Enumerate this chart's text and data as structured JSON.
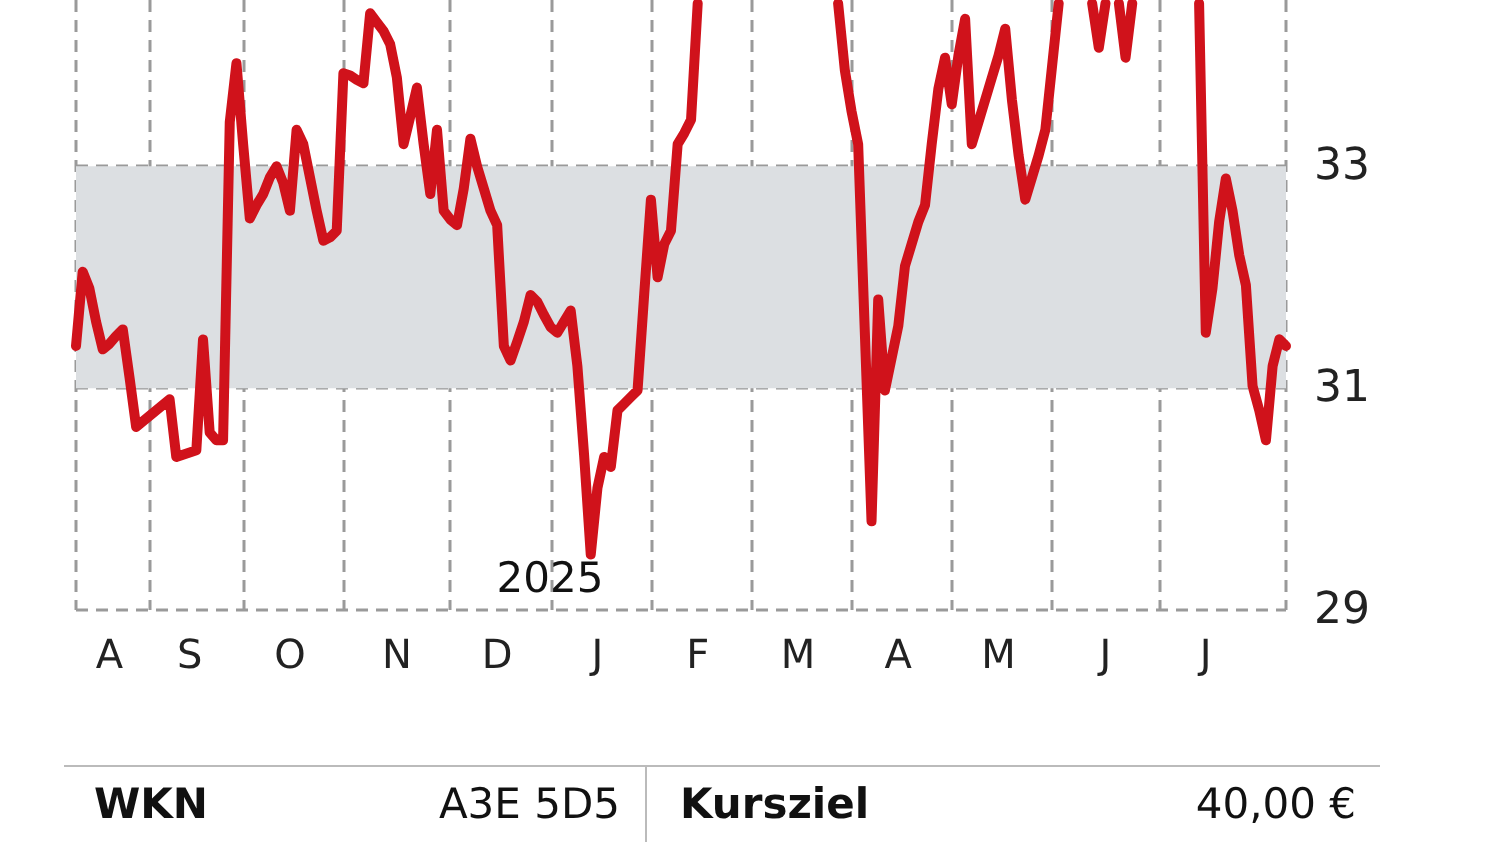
{
  "chart_data": {
    "type": "line",
    "annotations": [
      "2025",
      "WKN",
      "A3E 5D5",
      "Kursziel",
      "40,00 €"
    ],
    "categories": [
      null,
      null,
      null,
      null,
      null,
      "A",
      null,
      null,
      null,
      null,
      null,
      null,
      null,
      null,
      null,
      null,
      null,
      "S",
      null,
      null,
      null,
      null,
      null,
      null,
      null,
      null,
      null,
      null,
      null,
      null,
      null,
      null,
      "O",
      null,
      null,
      null,
      null,
      null,
      null,
      null,
      null,
      null,
      null,
      null,
      null,
      null,
      null,
      null,
      "N",
      null,
      null,
      null,
      null,
      null,
      null,
      null,
      null,
      null,
      null,
      null,
      null,
      null,
      null,
      "D",
      null,
      null,
      null,
      null,
      null,
      null,
      null,
      null,
      null,
      null,
      null,
      null,
      null,
      null,
      "J",
      null,
      null,
      null,
      null,
      null,
      null,
      null,
      null,
      null,
      null,
      null,
      null,
      null,
      null,
      "F",
      null,
      null,
      null,
      null,
      null,
      null,
      null,
      null,
      null,
      null,
      null,
      null,
      null,
      null,
      "M",
      null,
      null,
      null,
      null,
      null,
      null,
      null,
      null,
      null,
      null,
      null,
      null,
      null,
      null,
      "A",
      null,
      null,
      null,
      null,
      null,
      null,
      null,
      null,
      null,
      null,
      null,
      null,
      null,
      null,
      "M",
      null,
      null,
      null,
      null,
      null,
      null,
      null,
      null,
      null,
      null,
      null,
      null,
      null,
      null,
      null,
      "J",
      null,
      null,
      null,
      null,
      null,
      null,
      null,
      null,
      null,
      null,
      null,
      null,
      null,
      null,
      "J",
      null,
      null,
      null,
      null,
      null,
      null,
      null,
      null,
      null,
      null,
      null,
      null
    ],
    "series": [
      {
        "color": "#d0121b",
        "values": [
          31.38,
          32.05,
          31.9,
          31.6,
          31.35,
          31.4,
          31.47,
          31.53,
          31.1,
          30.65,
          30.7,
          30.75,
          30.8,
          30.85,
          30.9,
          30.38,
          30.4,
          30.42,
          30.44,
          31.44,
          30.6,
          30.53,
          30.53,
          33.4,
          33.93,
          33.2,
          32.53,
          32.65,
          32.75,
          32.9,
          33.0,
          32.85,
          32.6,
          33.33,
          33.2,
          32.9,
          32.6,
          32.33,
          32.36,
          32.42,
          33.84,
          33.82,
          33.78,
          33.75,
          34.38,
          34.3,
          34.22,
          34.1,
          33.8,
          33.2,
          33.45,
          33.71,
          33.2,
          32.75,
          33.33,
          32.6,
          32.52,
          32.47,
          32.8,
          33.25,
          33.0,
          32.8,
          32.6,
          32.47,
          31.38,
          31.25,
          31.42,
          31.6,
          31.84,
          31.78,
          31.66,
          31.55,
          31.5,
          31.6,
          31.7,
          31.2,
          30.4,
          29.5,
          30.1,
          30.38,
          30.29,
          30.8,
          30.86,
          30.92,
          30.98,
          31.85,
          32.7,
          32.0,
          32.3,
          32.42,
          33.2,
          33.3,
          33.42,
          34.47,
          null,
          null,
          null,
          null,
          null,
          null,
          null,
          null,
          null,
          null,
          null,
          null,
          null,
          null,
          null,
          null,
          null,
          null,
          null,
          null,
          34.47,
          33.87,
          33.5,
          33.2,
          31.5,
          29.8,
          31.8,
          30.98,
          31.27,
          31.56,
          32.1,
          32.3,
          32.5,
          32.65,
          33.2,
          33.7,
          33.98,
          33.56,
          34.0,
          34.33,
          33.2,
          33.4,
          33.6,
          33.8,
          34.0,
          34.24,
          33.6,
          33.1,
          32.7,
          32.9,
          33.1,
          33.33,
          33.9,
          34.47,
          null,
          null,
          null,
          null,
          34.47,
          34.07,
          34.47,
          null,
          34.47,
          33.98,
          34.47,
          null,
          null,
          null,
          null,
          null,
          null,
          null,
          null,
          null,
          34.47,
          31.5,
          31.9,
          32.5,
          32.89,
          32.6,
          32.2,
          31.93,
          31.02,
          30.8,
          30.53,
          31.2,
          31.44,
          31.38
        ]
      }
    ],
    "ylim": [
      29,
      34.5
    ],
    "yticks": [
      29,
      31,
      33
    ],
    "bands": [
      {
        "axis": "y",
        "from": 31,
        "to": 33,
        "color": "#dcdfe2"
      }
    ],
    "grid": true,
    "marker": "none",
    "line_style": "solid"
  }
}
